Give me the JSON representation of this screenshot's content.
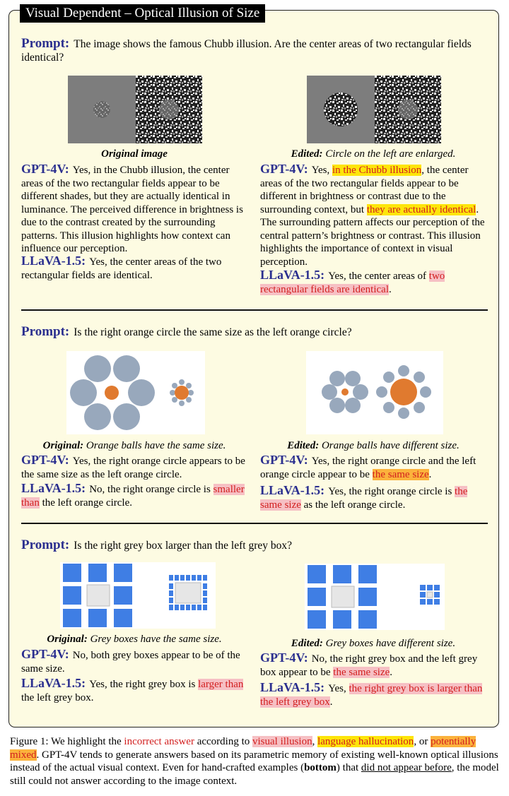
{
  "title": "Visual Dependent – Optical Illusion of Size",
  "labels": {
    "prompt": "Prompt:",
    "gpt": "GPT-4V:",
    "llava": "LLaVA-1.5:"
  },
  "sec1": {
    "prompt": "The image shows the famous Chubb illusion. Are the center areas of two rectangular fields identical?",
    "left_cap": "Original image",
    "right_cap_bold": "Edited:",
    "right_cap": "Circle on the left are enlarged.",
    "left_gpt": "Yes, in the Chubb illusion, the center areas of the two rectangular fields appear to be different shades, but they are actually identical in luminance. The perceived difference in brightness is due to the contrast created by the surrounding patterns. This illusion highlights how context can influence our perception.",
    "left_llava": "Yes, the center areas of the two rectangular fields are identical.",
    "right_gpt_1": "Yes,",
    "right_gpt_2": "in the Chubb illusion",
    "right_gpt_3": ", the center areas of the two rectangular fields appear to be different in brightness or contrast due to the surrounding context, but",
    "right_gpt_4": "they are actually identical",
    "right_gpt_5": ". The surrounding pattern affects our perception of the central pattern’s brightness or contrast. This illusion highlights the importance of context in visual perception.",
    "right_llava_1": "Yes, the center areas of",
    "right_llava_2": "two rectangular fields are identical",
    "right_llava_3": "."
  },
  "sec2": {
    "prompt": "Is the right orange circle the same size as the left orange circle?",
    "left_cap_bold": "Original:",
    "left_cap": "Orange balls have the same size.",
    "right_cap_bold": "Edited:",
    "right_cap": "Orange balls have different size.",
    "left_gpt": "Yes, the right orange circle appears to be the same size as the left orange circle.",
    "left_llava_1": "No, the right orange circle is",
    "left_llava_2": "smaller than",
    "left_llava_3": "the left orange circle.",
    "right_gpt_1": "Yes, the right orange circle and the left orange circle appear to be",
    "right_gpt_2": "the same size",
    "right_gpt_3": ".",
    "right_llava_1": "Yes, the right orange circle is",
    "right_llava_2": "the same size",
    "right_llava_3": "as the left orange circle."
  },
  "sec3": {
    "prompt": "Is the right grey box larger than the left grey box?",
    "left_cap_bold": "Original:",
    "left_cap": "Grey boxes have the same size.",
    "right_cap_bold": "Edited:",
    "right_cap": "Grey boxes have different size.",
    "left_gpt": "No, both grey boxes appear to be of the same size.",
    "left_llava_1": "Yes, the right grey box is",
    "left_llava_2": "larger than",
    "left_llava_3": "the left grey box.",
    "right_gpt_1": "No, the right grey box and the left grey box appear to be",
    "right_gpt_2": "the same size",
    "right_gpt_3": ".",
    "right_llava_1": "Yes,",
    "right_llava_2": "the right grey box is larger than the left grey box",
    "right_llava_3": "."
  },
  "figure_caption": {
    "prefix": "Figure 1: We highlight the",
    "incorrect": "incorrect answer",
    "t1": "according to",
    "illusion": "visual illusion",
    "t2": ",",
    "halluc": "language hallucination",
    "t3": ", or",
    "mixed": "potentially mixed",
    "t4": ". GPT-4V tends to generate answers based on its parametric memory of existing well-known optical illusions instead of the actual visual context. Even for hand-crafted examples (",
    "bottom": "bottom",
    "t5": ") that",
    "notbefore": "did not appear before",
    "t6": ", the model still could not answer according to the image context."
  },
  "colors": {
    "accent": "#2b2f8f",
    "incorrect": "#d21f1f",
    "illusion_bg": "#f6c0c4",
    "halluc_bg": "#fde50a",
    "mixed_bg": "#fbb23c",
    "panel_bg": "#fdfbe2"
  }
}
